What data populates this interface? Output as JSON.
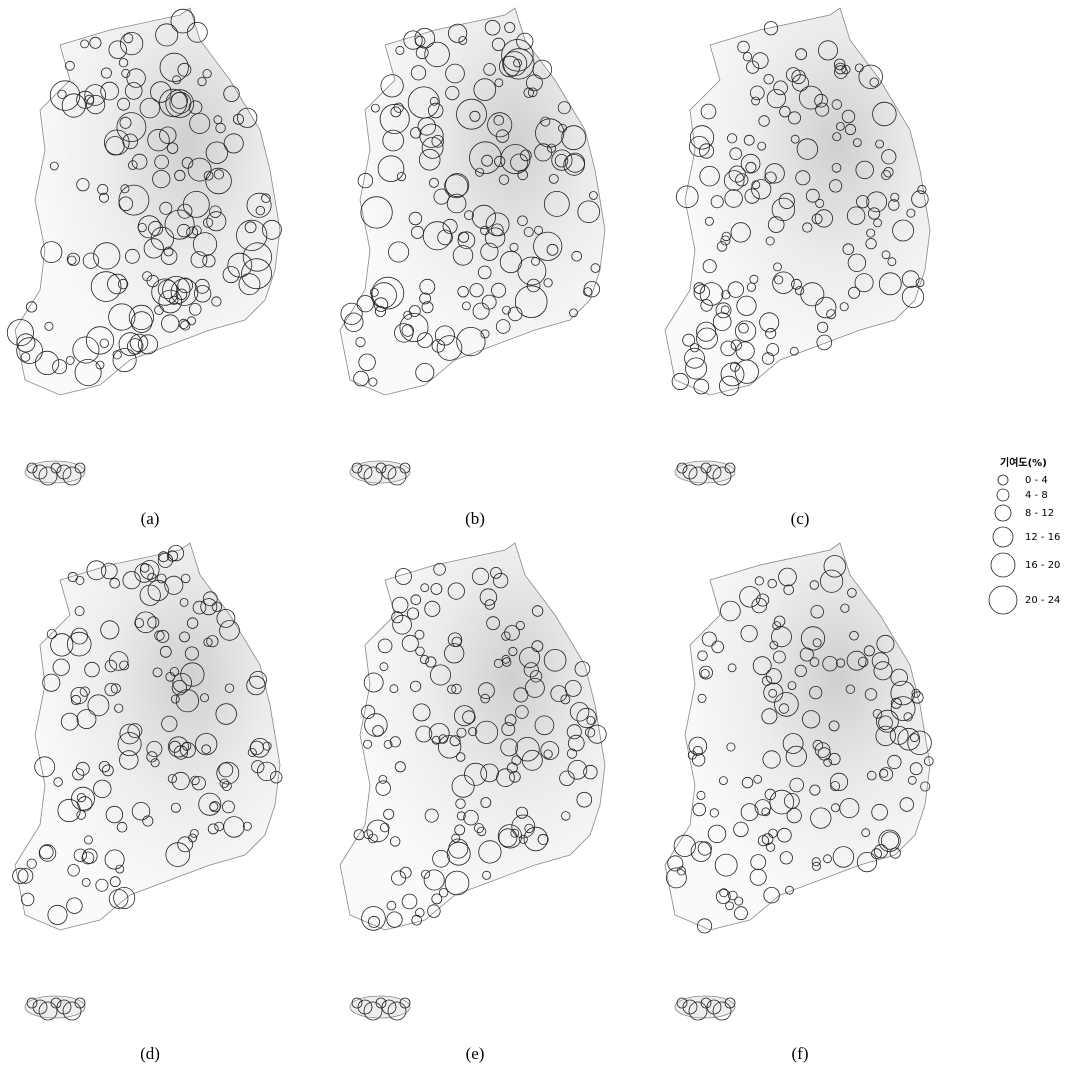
{
  "panels": [
    {
      "label": "(a)"
    },
    {
      "label": "(b)"
    },
    {
      "label": "(c)"
    },
    {
      "label": "(d)"
    },
    {
      "label": "(e)"
    },
    {
      "label": "(f)"
    }
  ],
  "legend": {
    "title": "기여도(%)",
    "items": [
      "0 - 4",
      "4 - 8",
      "8 - 12",
      "12 - 16",
      "16 - 20",
      "20 - 24"
    ]
  }
}
